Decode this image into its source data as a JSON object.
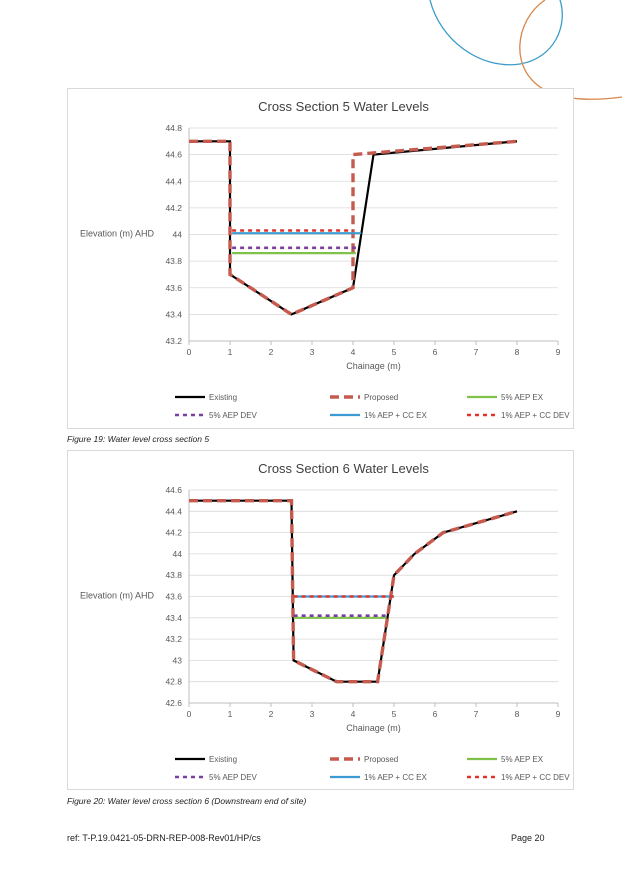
{
  "decoration": {
    "blue": "#3b9cc9",
    "orange": "#d9874a"
  },
  "series_styles": [
    {
      "color": "#000000",
      "width": 2.2,
      "dash": ""
    },
    {
      "color": "#c55a4f",
      "width": 3.4,
      "dash": "9,5"
    },
    {
      "color": "#7fc24a",
      "width": 2.2,
      "dash": ""
    },
    {
      "color": "#7b3fa0",
      "width": 2.6,
      "dash": "4,4"
    },
    {
      "color": "#3d9bd3",
      "width": 2.2,
      "dash": ""
    },
    {
      "color": "#e0342b",
      "width": 2.6,
      "dash": "4,4"
    }
  ],
  "chart_data": [
    {
      "type": "line",
      "title": "Cross Section 5 Water Levels",
      "xlabel": "Chainage (m)",
      "ylabel": "Elevation (m) AHD",
      "xlim": [
        0,
        9
      ],
      "ylim": [
        43.2,
        44.8
      ],
      "xticks": [
        "0",
        "1",
        "2",
        "3",
        "4",
        "5",
        "6",
        "7",
        "8",
        "9"
      ],
      "yticks": [
        "43.2",
        "43.4",
        "43.6",
        "43.8",
        "44",
        "44.2",
        "44.4",
        "44.6",
        "44.8"
      ],
      "grid": true,
      "legend": "bottom",
      "series": [
        {
          "name": "Existing",
          "points": [
            [
              0,
              44.7
            ],
            [
              1,
              44.7
            ],
            [
              1,
              43.7
            ],
            [
              2.5,
              43.4
            ],
            [
              4,
              43.6
            ],
            [
              4.5,
              44.6
            ],
            [
              8,
              44.7
            ]
          ]
        },
        {
          "name": "Proposed",
          "points": [
            [
              0,
              44.7
            ],
            [
              1,
              44.7
            ],
            [
              1,
              43.7
            ],
            [
              2.5,
              43.4
            ],
            [
              4,
              43.6
            ],
            [
              4,
              44.6
            ],
            [
              8,
              44.7
            ]
          ]
        },
        {
          "name": "5% AEP EX",
          "points": [
            [
              1.05,
              43.86
            ],
            [
              4.07,
              43.86
            ]
          ]
        },
        {
          "name": "5% AEP DEV",
          "points": [
            [
              1.05,
              43.9
            ],
            [
              4.07,
              43.9
            ]
          ]
        },
        {
          "name": "1% AEP + CC EX",
          "points": [
            [
              1.05,
              44.01
            ],
            [
              4.2,
              44.01
            ]
          ]
        },
        {
          "name": "1% AEP + CC DEV",
          "points": [
            [
              1.05,
              44.03
            ],
            [
              4.0,
              44.03
            ]
          ]
        }
      ]
    },
    {
      "type": "line",
      "title": "Cross Section 6 Water Levels",
      "xlabel": "Chainage (m)",
      "ylabel": "Elevation (m) AHD",
      "xlim": [
        0,
        9
      ],
      "ylim": [
        42.6,
        44.6
      ],
      "xticks": [
        "0",
        "1",
        "2",
        "3",
        "4",
        "5",
        "6",
        "7",
        "8",
        "9"
      ],
      "yticks": [
        "42.6",
        "42.8",
        "43",
        "43.2",
        "43.4",
        "43.6",
        "43.8",
        "44",
        "44.2",
        "44.4",
        "44.6"
      ],
      "grid": true,
      "legend": "bottom",
      "series": [
        {
          "name": "Existing",
          "points": [
            [
              0,
              44.5
            ],
            [
              2.5,
              44.5
            ],
            [
              2.55,
              43.0
            ],
            [
              3.6,
              42.8
            ],
            [
              4.6,
              42.8
            ],
            [
              5,
              43.8
            ],
            [
              5.5,
              44.0
            ],
            [
              6.2,
              44.2
            ],
            [
              8,
              44.4
            ]
          ]
        },
        {
          "name": "Proposed",
          "points": [
            [
              0,
              44.5
            ],
            [
              2.5,
              44.5
            ],
            [
              2.55,
              43.0
            ],
            [
              3.6,
              42.8
            ],
            [
              4.6,
              42.8
            ],
            [
              5,
              43.8
            ],
            [
              5.5,
              44.0
            ],
            [
              6.2,
              44.2
            ],
            [
              8,
              44.4
            ]
          ]
        },
        {
          "name": "5% AEP EX",
          "points": [
            [
              2.55,
              43.4
            ],
            [
              4.82,
              43.4
            ]
          ]
        },
        {
          "name": "5% AEP DEV",
          "points": [
            [
              2.55,
              43.42
            ],
            [
              4.82,
              43.42
            ]
          ]
        },
        {
          "name": "1% AEP + CC EX",
          "points": [
            [
              2.55,
              43.6
            ],
            [
              5.0,
              43.6
            ]
          ]
        },
        {
          "name": "1% AEP + CC DEV",
          "points": [
            [
              2.55,
              43.6
            ],
            [
              5.05,
              43.6
            ]
          ]
        }
      ]
    }
  ],
  "captions": [
    "Figure 19: Water level cross section 5",
    "Figure 20: Water level cross section 6 (Downstream end of site)"
  ],
  "footer": {
    "ref": "ref: T-P.19.0421-05-DRN-REP-008-Rev01/HP/cs",
    "page": "Page 20"
  }
}
